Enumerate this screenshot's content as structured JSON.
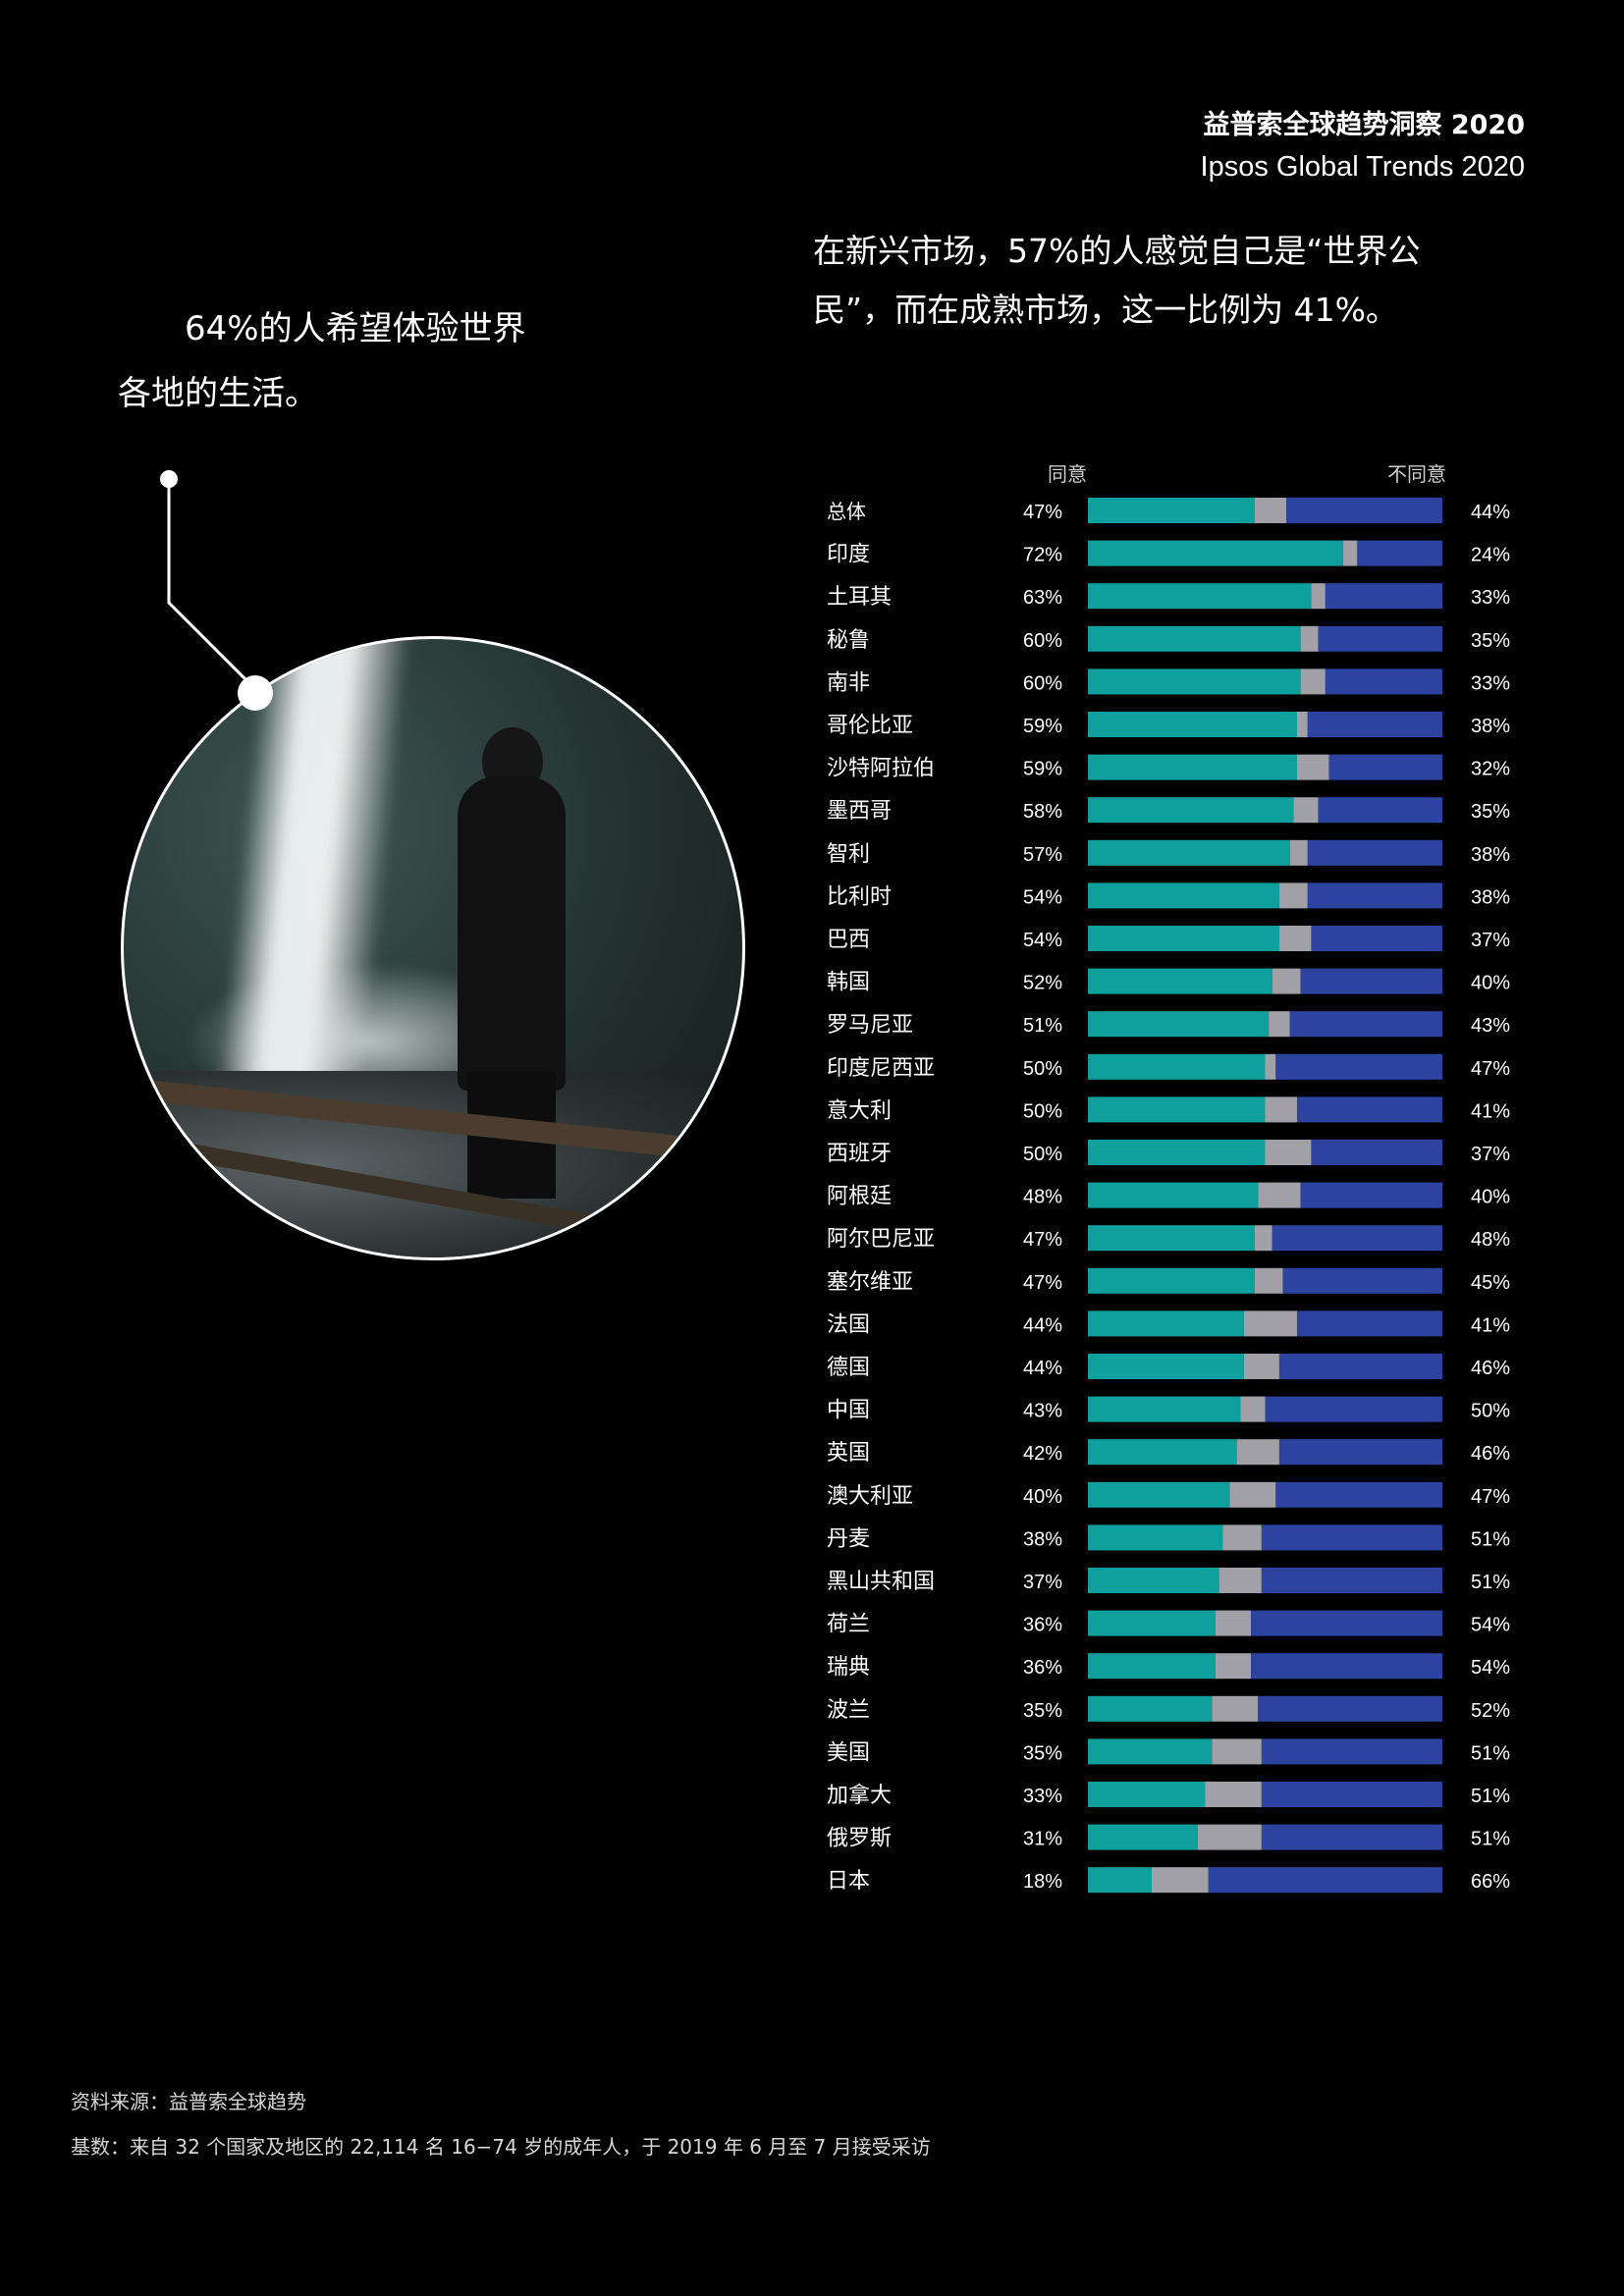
{
  "header": {
    "title": "益普索全球趋势洞察 2020",
    "subtitle": "Ipsos Global Trends 2020"
  },
  "intro_text": "在新兴市场，57%的人感觉自己是“世界公民”，而在成熟市场，这一比例为 41%。",
  "callout": {
    "line1": "64%的人希望体验世界",
    "line2": "各地的生活。"
  },
  "photo": {
    "description_icon": "waterfall-photo"
  },
  "colors": {
    "agree": "#0fa09e",
    "neutral": "#a0a0a6",
    "disagree": "#2c43a0",
    "background": "#000000"
  },
  "chart_data": {
    "type": "bar",
    "orientation": "horizontal-stacked",
    "legend": {
      "agree": "同意",
      "disagree": "不同意"
    },
    "categories": [
      "总体",
      "印度",
      "土耳其",
      "秘鲁",
      "南非",
      "哥伦比亚",
      "沙特阿拉伯",
      "墨西哥",
      "智利",
      "比利时",
      "巴西",
      "韩国",
      "罗马尼亚",
      "印度尼西亚",
      "意大利",
      "西班牙",
      "阿根廷",
      "阿尔巴尼亚",
      "塞尔维亚",
      "法国",
      "德国",
      "中国",
      "英国",
      "澳大利亚",
      "丹麦",
      "黑山共和国",
      "荷兰",
      "瑞典",
      "波兰",
      "美国",
      "加拿大",
      "俄罗斯",
      "日本"
    ],
    "series": [
      {
        "name": "同意",
        "values": [
          47,
          72,
          63,
          60,
          60,
          59,
          59,
          58,
          57,
          54,
          54,
          52,
          51,
          50,
          50,
          50,
          48,
          47,
          47,
          44,
          44,
          43,
          42,
          40,
          38,
          37,
          36,
          36,
          35,
          35,
          33,
          31,
          18
        ]
      },
      {
        "name": "不同意",
        "values": [
          44,
          24,
          33,
          35,
          33,
          38,
          32,
          35,
          38,
          38,
          37,
          40,
          43,
          47,
          41,
          37,
          40,
          48,
          45,
          41,
          46,
          50,
          46,
          47,
          51,
          51,
          54,
          54,
          52,
          51,
          51,
          51,
          66
        ]
      }
    ],
    "value_suffix": "%",
    "xlim": [
      0,
      100
    ]
  },
  "footer": {
    "source": "资料来源：益普索全球趋势",
    "base": "基数：来自 32 个国家及地区的 22,114 名 16−74 岁的成年人，于 2019 年 6 月至 7 月接受采访"
  }
}
